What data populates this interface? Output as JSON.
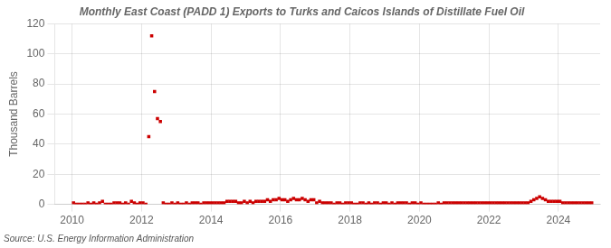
{
  "chart_data": {
    "type": "scatter",
    "title": "Monthly East Coast (PADD 1) Exports to Turks and Caicos Islands of Distillate Fuel Oil",
    "ylabel": "Thousand Barrels",
    "annotation": "Source: U.S. Energy Information Administration",
    "color": "#cc0000",
    "marker": "square",
    "grid": true,
    "xlim": [
      2009.5,
      2025.2
    ],
    "xticks": [
      2010,
      2012,
      2014,
      2016,
      2018,
      2020,
      2022,
      2024
    ],
    "ylim": [
      0,
      120
    ],
    "yticks": [
      0,
      20,
      40,
      60,
      80,
      100,
      120
    ],
    "x": [
      2010.0416666667,
      2010.125,
      2010.2083333333,
      2010.2916666667,
      2010.375,
      2010.4583333333,
      2010.5416666667,
      2010.625,
      2010.7083333333,
      2010.7916666667,
      2010.875,
      2010.9583333333,
      2011.0416666667,
      2011.125,
      2011.2083333333,
      2011.2916666667,
      2011.375,
      2011.4583333333,
      2011.5416666667,
      2011.625,
      2011.7083333333,
      2011.7916666667,
      2011.875,
      2011.9583333333,
      2012.0416666667,
      2012.125,
      2012.2083333333,
      2012.2916666667,
      2012.375,
      2012.4583333333,
      2012.5416666667,
      2012.625,
      2012.7083333333,
      2012.7916666667,
      2012.875,
      2012.9583333333,
      2013.0416666667,
      2013.125,
      2013.2083333333,
      2013.2916666667,
      2013.375,
      2013.4583333333,
      2013.5416666667,
      2013.625,
      2013.7083333333,
      2013.7916666667,
      2013.875,
      2013.9583333333,
      2014.0416666667,
      2014.125,
      2014.2083333333,
      2014.2916666667,
      2014.375,
      2014.4583333333,
      2014.5416666667,
      2014.625,
      2014.7083333333,
      2014.7916666667,
      2014.875,
      2014.9583333333,
      2015.0416666667,
      2015.125,
      2015.2083333333,
      2015.2916666667,
      2015.375,
      2015.4583333333,
      2015.5416666667,
      2015.625,
      2015.7083333333,
      2015.7916666667,
      2015.875,
      2015.9583333333,
      2016.0416666667,
      2016.125,
      2016.2083333333,
      2016.2916666667,
      2016.375,
      2016.4583333333,
      2016.5416666667,
      2016.625,
      2016.7083333333,
      2016.7916666667,
      2016.875,
      2016.9583333333,
      2017.0416666667,
      2017.125,
      2017.2083333333,
      2017.2916666667,
      2017.375,
      2017.4583333333,
      2017.5416666667,
      2017.625,
      2017.7083333333,
      2017.7916666667,
      2017.875,
      2017.9583333333,
      2018.0416666667,
      2018.125,
      2018.2083333333,
      2018.2916666667,
      2018.375,
      2018.4583333333,
      2018.5416666667,
      2018.625,
      2018.7083333333,
      2018.7916666667,
      2018.875,
      2018.9583333333,
      2019.0416666667,
      2019.125,
      2019.2083333333,
      2019.2916666667,
      2019.375,
      2019.4583333333,
      2019.5416666667,
      2019.625,
      2019.7083333333,
      2019.7916666667,
      2019.875,
      2019.9583333333,
      2020.0416666667,
      2020.125,
      2020.2083333333,
      2020.2916666667,
      2020.375,
      2020.4583333333,
      2020.5416666667,
      2020.625,
      2020.7083333333,
      2020.7916666667,
      2020.875,
      2020.9583333333,
      2021.0416666667,
      2021.125,
      2021.2083333333,
      2021.2916666667,
      2021.375,
      2021.4583333333,
      2021.5416666667,
      2021.625,
      2021.7083333333,
      2021.7916666667,
      2021.875,
      2021.9583333333,
      2022.0416666667,
      2022.125,
      2022.2083333333,
      2022.2916666667,
      2022.375,
      2022.4583333333,
      2022.5416666667,
      2022.625,
      2022.7083333333,
      2022.7916666667,
      2022.875,
      2022.9583333333,
      2023.0416666667,
      2023.125,
      2023.2083333333,
      2023.2916666667,
      2023.375,
      2023.4583333333,
      2023.5416666667,
      2023.625,
      2023.7083333333,
      2023.7916666667,
      2023.875,
      2023.9583333333,
      2024.0416666667,
      2024.125,
      2024.2083333333,
      2024.2916666667,
      2024.375,
      2024.4583333333,
      2024.5416666667,
      2024.625,
      2024.7083333333,
      2024.7916666667,
      2024.875,
      2024.9583333333
    ],
    "values": [
      1,
      0,
      0,
      0,
      0,
      1,
      0,
      1,
      0,
      1,
      2,
      0,
      0,
      0,
      1,
      1,
      1,
      0,
      1,
      0,
      2,
      1,
      0,
      1,
      1,
      0,
      45,
      112,
      75,
      57,
      55,
      1,
      0,
      0,
      1,
      0,
      1,
      0,
      0,
      1,
      0,
      1,
      1,
      1,
      0,
      1,
      1,
      1,
      1,
      1,
      1,
      1,
      1,
      2,
      2,
      2,
      2,
      1,
      1,
      2,
      1,
      2,
      1,
      2,
      2,
      2,
      2,
      3,
      2,
      3,
      3,
      4,
      3,
      3,
      2,
      3,
      4,
      3,
      3,
      4,
      3,
      2,
      3,
      3,
      1,
      2,
      1,
      1,
      1,
      1,
      0,
      1,
      1,
      0,
      1,
      1,
      1,
      0,
      0,
      1,
      1,
      0,
      1,
      0,
      1,
      1,
      0,
      1,
      1,
      0,
      1,
      0,
      1,
      1,
      1,
      1,
      0,
      1,
      1,
      0,
      1,
      0,
      0,
      0,
      0,
      0,
      1,
      0,
      1,
      1,
      1,
      1,
      1,
      1,
      1,
      1,
      1,
      1,
      1,
      1,
      1,
      1,
      1,
      1,
      1,
      1,
      1,
      1,
      1,
      1,
      1,
      1,
      1,
      1,
      1,
      1,
      1,
      1,
      2,
      3,
      4,
      5,
      4,
      3,
      2,
      2,
      2,
      2,
      2,
      1,
      1,
      1,
      1,
      1,
      1,
      1,
      1,
      1,
      1,
      1
    ]
  }
}
